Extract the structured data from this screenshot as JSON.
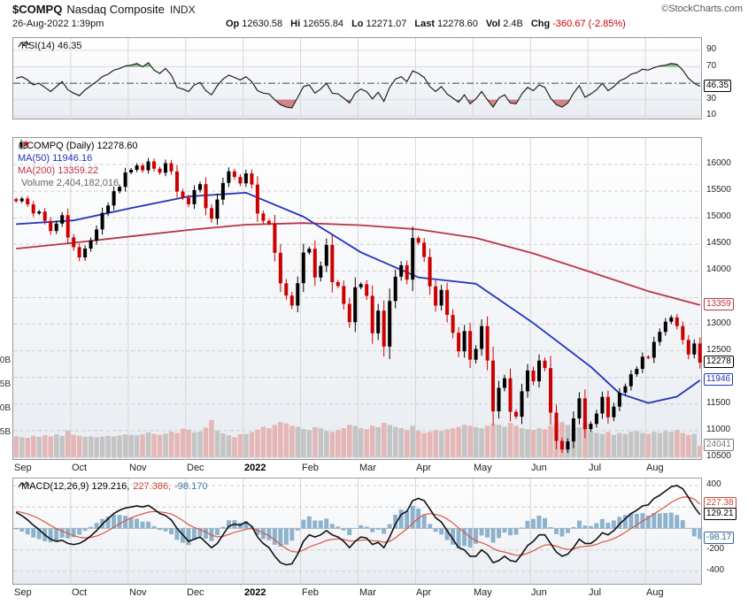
{
  "header": {
    "symbol": "$COMPQ",
    "name": "Nasdaq Composite",
    "exchange": "INDX",
    "brand": "©StockCharts.com",
    "datetime": "26-Aug-2022 1:39pm",
    "stats": [
      {
        "label": "Op",
        "value": "12630.58",
        "color": "#111111"
      },
      {
        "label": "Hi",
        "value": "12655.84",
        "color": "#111111"
      },
      {
        "label": "Lo",
        "value": "12271.07",
        "color": "#111111"
      },
      {
        "label": "Last",
        "value": "12278.60",
        "color": "#111111"
      },
      {
        "label": "Vol",
        "value": "2.4B",
        "color": "#111111"
      },
      {
        "label": "Chg",
        "value": "-360.67 (-2.85%)",
        "color": "#cc0000"
      }
    ]
  },
  "rsi_panel": {
    "legend": "RSI(14) 46.35",
    "axis_ticks": [
      90,
      70,
      30,
      10
    ],
    "box": {
      "text": "46.35",
      "value": 46.35,
      "color": "#000000"
    }
  },
  "main_panel": {
    "legend": [
      {
        "text": "$COMPQ (Daily) 12278.60",
        "color": "#000000"
      },
      {
        "text": "MA(50) 11946.16",
        "color": "#2233bb"
      },
      {
        "text": "MA(200) 13359.22",
        "color": "#bb3344"
      },
      {
        "text": "Volume 2,404,182,016",
        "color": "#666666"
      }
    ],
    "axis_ticks": [
      16000,
      15500,
      15000,
      14500,
      14000,
      13000,
      12500,
      11500,
      11000,
      10500
    ],
    "boxes": [
      {
        "text": "13359",
        "value": 13359.22,
        "color": "#bb3344"
      },
      {
        "text": "12278",
        "value": 12278.6,
        "color": "#000000"
      },
      {
        "text": "11946",
        "value": 11946.16,
        "color": "#2233bb"
      },
      {
        "text": "24041",
        "volume_value": 2.404,
        "color": "#777777"
      }
    ],
    "volume_axis": [
      {
        "text": "0B",
        "value": 20
      },
      {
        "text": "5B",
        "value": 15
      },
      {
        "text": "0B",
        "value": 10
      },
      {
        "text": "5B",
        "value": 5
      }
    ]
  },
  "macd_panel": {
    "legend": [
      {
        "text": "MACD(12,26,9) 129.216,",
        "color": "#000000"
      },
      {
        "text": "227.386,",
        "color": "#cc4433"
      },
      {
        "text": "-98.170",
        "color": "#447799"
      }
    ],
    "axis_ticks": [
      400,
      -200,
      -400
    ],
    "boxes": [
      {
        "text": "227.38",
        "value": 227.386,
        "color": "#cc4433"
      },
      {
        "text": "129.21",
        "value": 129.216,
        "color": "#000000"
      },
      {
        "text": "-98.17",
        "value": -98.17,
        "color": "#336699"
      }
    ]
  },
  "x_axis": {
    "months": [
      {
        "label": "Sep",
        "idx": 0
      },
      {
        "label": "Oct",
        "idx": 10
      },
      {
        "label": "Nov",
        "idx": 20
      },
      {
        "label": "Dec",
        "idx": 30
      },
      {
        "label": "2022",
        "idx": 40,
        "bold": true
      },
      {
        "label": "Feb",
        "idx": 50
      },
      {
        "label": "Mar",
        "idx": 60
      },
      {
        "label": "Apr",
        "idx": 70
      },
      {
        "label": "May",
        "idx": 80
      },
      {
        "label": "Jun",
        "idx": 90
      },
      {
        "label": "Jul",
        "idx": 100
      },
      {
        "label": "Aug",
        "idx": 110
      }
    ]
  },
  "chart_data": [
    {
      "panel": "rsi",
      "type": "line",
      "title": "RSI(14)",
      "current": 46.35,
      "overbought": 70,
      "oversold": 30,
      "midline": 50,
      "ylim": [
        5,
        105
      ],
      "visible_ticks": [
        90,
        70,
        30,
        10
      ],
      "x_span": "Sep 2021 - 26 Aug 2022, ~10 samples per month",
      "values": [
        56,
        58,
        54,
        48,
        50,
        45,
        40,
        46,
        52,
        42,
        38,
        35,
        42,
        47,
        52,
        58,
        61,
        66,
        68,
        71,
        72,
        74,
        70,
        75,
        66,
        62,
        68,
        60,
        45,
        43,
        40,
        48,
        51,
        41,
        36,
        47,
        55,
        60,
        57,
        54,
        58,
        52,
        41,
        38,
        37,
        30,
        24,
        21,
        20,
        33,
        46,
        48,
        38,
        43,
        50,
        38,
        37,
        32,
        26,
        38,
        43,
        40,
        31,
        39,
        28,
        45,
        55,
        58,
        52,
        65,
        62,
        57,
        46,
        40,
        46,
        37,
        32,
        27,
        36,
        25,
        31,
        40,
        30,
        21,
        32,
        36,
        26,
        25,
        37,
        45,
        41,
        48,
        45,
        32,
        24,
        21,
        26,
        38,
        47,
        33,
        37,
        42,
        50,
        41,
        46,
        53,
        56,
        61,
        63,
        67,
        66,
        69,
        71,
        72,
        74,
        73,
        66,
        56,
        50,
        46.35
      ],
      "colors": {
        "line": "#222222",
        "over_fill": "rgba(0,110,0,0.45)",
        "under_fill": "rgba(185,0,0,0.45)"
      }
    },
    {
      "panel": "price",
      "type": "candlestick",
      "symbol": "$COMPQ",
      "timeframe": "Daily",
      "last": 12278.6,
      "open": 12630.58,
      "high": 12655.84,
      "low": 12271.07,
      "change": -360.67,
      "change_pct": -2.85,
      "price_axis": {
        "min": 10500,
        "max": 16000,
        "step": 500
      },
      "x_span": "Sep 2021 - 26 Aug 2022, ~10 samples per month",
      "close": [
        15310,
        15360,
        15250,
        15080,
        15115,
        14940,
        14750,
        14890,
        15048,
        14630,
        14448,
        14255,
        14420,
        14571,
        14780,
        15090,
        15230,
        15498,
        15580,
        15850,
        15900,
        15982,
        15890,
        16057,
        15921,
        15845,
        16025,
        15870,
        15492,
        15380,
        15254,
        15520,
        15630,
        15180,
        14980,
        15341,
        15653,
        15871,
        15766,
        15645,
        15833,
        15623,
        15080,
        14942,
        14894,
        14340,
        13769,
        13539,
        13352,
        13770,
        14346,
        14418,
        13878,
        14098,
        14490,
        13791,
        13717,
        13381,
        13037,
        13694,
        13751,
        13532,
        12830,
        13255,
        12581,
        13436,
        13893,
        14108,
        13838,
        14619,
        14532,
        14261,
        13711,
        13351,
        13643,
        13174,
        12839,
        12490,
        12871,
        12334,
        12536,
        12964,
        12317,
        11364,
        11805,
        11984,
        11354,
        11264,
        11740,
        12131,
        11928,
        12316,
        12175,
        11340,
        10809,
        10646,
        10798,
        11232,
        11607,
        11028,
        11128,
        11322,
        11635,
        11251,
        11452,
        11713,
        11834,
        12060,
        12162,
        12390,
        12369,
        12668,
        12854,
        13047,
        13128,
        12965,
        12705,
        12431,
        12639,
        12279
      ],
      "volume_billions": [
        4.4,
        4.2,
        4.1,
        4.5,
        4.3,
        4.6,
        4.4,
        4.8,
        4.5,
        5.6,
        4.7,
        4.5,
        4.3,
        4.4,
        4.2,
        4.3,
        4.5,
        4.4,
        4.6,
        4.8,
        4.7,
        4.6,
        4.8,
        5.2,
        4.9,
        4.7,
        5.0,
        5.4,
        5.1,
        6.0,
        5.8,
        5.2,
        5.4,
        6.2,
        7.8,
        5.6,
        5.0,
        4.6,
        4.2,
        4.8,
        4.9,
        5.3,
        5.8,
        6.4,
        6.1,
        6.8,
        7.4,
        7.1,
        6.6,
        6.4,
        5.9,
        5.7,
        6.3,
        6.1,
        5.5,
        5.3,
        5.7,
        6.1,
        6.8,
        6.6,
        6.1,
        5.9,
        6.6,
        6.3,
        7.2,
        6.8,
        6.4,
        6.1,
        5.7,
        6.6,
        5.5,
        5.1,
        5.3,
        5.7,
        5.5,
        5.9,
        6.1,
        6.4,
        6.8,
        6.6,
        6.3,
        6.1,
        6.6,
        7.0,
        6.8,
        6.4,
        7.2,
        6.6,
        6.1,
        5.9,
        5.7,
        6.1,
        5.9,
        6.6,
        7.0,
        7.4,
        6.8,
        6.1,
        6.3,
        7.2,
        5.5,
        5.1,
        4.9,
        5.3,
        4.7,
        5.1,
        4.9,
        5.3,
        5.5,
        5.1,
        4.9,
        5.3,
        5.1,
        5.5,
        5.3,
        5.7,
        5.1,
        4.7,
        4.9,
        2.404
      ],
      "last_volume": "2,404,182,016",
      "ma50": {
        "period": 50,
        "last": 11946.16,
        "anchors": [
          [
            0,
            14880
          ],
          [
            10,
            14950
          ],
          [
            20,
            15180
          ],
          [
            30,
            15400
          ],
          [
            40,
            15470
          ],
          [
            50,
            15020
          ],
          [
            60,
            14350
          ],
          [
            70,
            13880
          ],
          [
            80,
            13760
          ],
          [
            90,
            13020
          ],
          [
            100,
            12200
          ],
          [
            105,
            11700
          ],
          [
            110,
            11520
          ],
          [
            115,
            11640
          ],
          [
            119,
            11946
          ]
        ]
      },
      "ma200": {
        "period": 200,
        "last": 13359.22,
        "anchors": [
          [
            0,
            14420
          ],
          [
            10,
            14530
          ],
          [
            20,
            14650
          ],
          [
            30,
            14770
          ],
          [
            40,
            14870
          ],
          [
            50,
            14900
          ],
          [
            60,
            14860
          ],
          [
            70,
            14780
          ],
          [
            80,
            14620
          ],
          [
            90,
            14330
          ],
          [
            100,
            13980
          ],
          [
            110,
            13620
          ],
          [
            119,
            13359
          ]
        ]
      },
      "colors": {
        "up": "#000000",
        "down": "#cc0000",
        "ma50": "#2233bb",
        "ma200": "#bb3344",
        "vol_up": "#c4c4c4",
        "vol_down": "#e5b6b6"
      }
    },
    {
      "panel": "macd",
      "type": "line+histogram",
      "title": "MACD(12,26,9)",
      "macd_last": 129.216,
      "signal_last": 227.386,
      "hist_last": -98.17,
      "ylim": [
        -400,
        400
      ],
      "visible_ticks": [
        400,
        -200,
        -400
      ],
      "x_span": "Sep 2021 - 26 Aug 2022, ~10 samples per month",
      "macd": [
        150,
        120,
        80,
        30,
        -10,
        -60,
        -100,
        -120,
        -110,
        -140,
        -150,
        -140,
        -110,
        -70,
        -20,
        40,
        90,
        140,
        170,
        190,
        200,
        210,
        200,
        215,
        180,
        140,
        120,
        80,
        0,
        -60,
        -120,
        -100,
        -80,
        -130,
        -180,
        -140,
        -60,
        20,
        40,
        30,
        60,
        20,
        -80,
        -140,
        -180,
        -260,
        -320,
        -340,
        -330,
        -240,
        -120,
        -60,
        -80,
        -60,
        -20,
        -60,
        -80,
        -120,
        -180,
        -120,
        -80,
        -90,
        -150,
        -130,
        -180,
        -80,
        40,
        130,
        160,
        260,
        280,
        260,
        180,
        100,
        60,
        -20,
        -100,
        -180,
        -200,
        -260,
        -260,
        -200,
        -240,
        -320,
        -300,
        -260,
        -300,
        -310,
        -240,
        -160,
        -120,
        -60,
        -60,
        -140,
        -220,
        -260,
        -240,
        -180,
        -100,
        -140,
        -140,
        -100,
        -40,
        -60,
        -20,
        40,
        90,
        140,
        170,
        210,
        220,
        280,
        310,
        350,
        390,
        400,
        370,
        290,
        200,
        129.216
      ],
      "signal": [
        160,
        150,
        135,
        115,
        90,
        60,
        28,
        -2,
        -24,
        -47,
        -68,
        -82,
        -88,
        -84,
        -71,
        -49,
        -21,
        11,
        43,
        72,
        98,
        120,
        136,
        152,
        158,
        154,
        147,
        134,
        107,
        74,
        35,
        8,
        -10,
        -34,
        -63,
        -78,
        -75,
        -56,
        -37,
        -23,
        -7,
        -1,
        -17,
        -42,
        -69,
        -107,
        -150,
        -188,
        -216,
        -221,
        -201,
        -173,
        -154,
        -135,
        -112,
        -102,
        -97,
        -102,
        -117,
        -118,
        -110,
        -106,
        -115,
        -118,
        -130,
        -120,
        -88,
        -45,
        -4,
        49,
        95,
        128,
        138,
        131,
        117,
        89,
        51,
        5,
        -36,
        -81,
        -117,
        -133,
        -155,
        -188,
        -210,
        -220,
        -236,
        -251,
        -249,
        -231,
        -209,
        -179,
        -155,
        -152,
        -166,
        -185,
        -196,
        -193,
        -174,
        -167,
        -162,
        -149,
        -127,
        -114,
        -95,
        -68,
        -36,
        -1,
        33,
        68,
        99,
        135,
        170,
        206,
        243,
        274,
        293,
        293,
        274,
        227.386
      ],
      "colors": {
        "macd": "#111111",
        "signal": "#dd5544",
        "histogram": "#8cb2cd"
      }
    }
  ]
}
